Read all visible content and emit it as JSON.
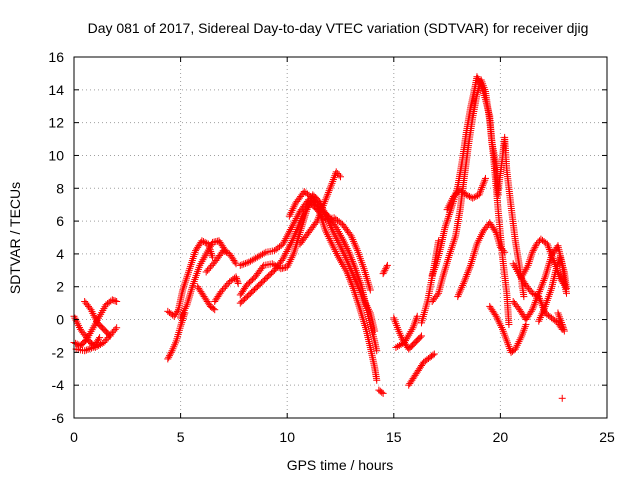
{
  "chart_data": {
    "type": "scatter",
    "title": "Day 081 of 2017, Sidereal Day-to-day VTEC variation (SDTVAR) for receiver djig",
    "xlabel": "GPS time / hours",
    "ylabel": "SDTVAR / TECUs",
    "xlim": [
      0,
      25
    ],
    "ylim": [
      -6,
      16
    ],
    "xticks": [
      "0",
      "5",
      "10",
      "15",
      "20",
      "25"
    ],
    "yticks": [
      "-6",
      "-4",
      "-2",
      "0",
      "2",
      "4",
      "6",
      "8",
      "10",
      "12",
      "14",
      "16"
    ],
    "grid": true,
    "marker": "+",
    "color": "#ff0000",
    "tracks": [
      [
        [
          0.0,
          0.2
        ],
        [
          0.3,
          -0.6
        ],
        [
          0.7,
          -1.3
        ],
        [
          1.0,
          -1.7
        ],
        [
          1.4,
          -1.4
        ],
        [
          1.8,
          -0.8
        ],
        [
          2.0,
          -0.5
        ]
      ],
      [
        [
          0.0,
          -1.4
        ],
        [
          0.3,
          -1.6
        ],
        [
          0.6,
          -1.2
        ],
        [
          0.9,
          -0.5
        ],
        [
          1.2,
          0.2
        ],
        [
          1.5,
          0.9
        ],
        [
          1.8,
          1.2
        ],
        [
          2.0,
          1.1
        ]
      ],
      [
        [
          0.1,
          -1.8
        ],
        [
          0.5,
          -1.9
        ],
        [
          0.9,
          -1.7
        ],
        [
          1.2,
          -1.1
        ]
      ],
      [
        [
          0.5,
          1.1
        ],
        [
          0.8,
          0.6
        ],
        [
          1.1,
          -0.2
        ],
        [
          1.4,
          -0.6
        ],
        [
          1.7,
          -1.0
        ]
      ],
      [
        [
          4.4,
          -2.4
        ],
        [
          4.6,
          -1.9
        ],
        [
          4.8,
          -1.3
        ],
        [
          5.0,
          -0.4
        ],
        [
          5.2,
          0.4
        ]
      ],
      [
        [
          4.4,
          0.5
        ],
        [
          4.7,
          0.2
        ],
        [
          4.9,
          0.6
        ],
        [
          5.1,
          1.8
        ],
        [
          5.4,
          3.0
        ],
        [
          5.7,
          4.2
        ],
        [
          6.0,
          4.8
        ],
        [
          6.3,
          4.6
        ],
        [
          6.5,
          3.8
        ]
      ],
      [
        [
          5.0,
          0.1
        ],
        [
          5.3,
          0.9
        ],
        [
          5.6,
          2.2
        ],
        [
          5.9,
          3.3
        ],
        [
          6.2,
          4.0
        ],
        [
          6.5,
          4.7
        ],
        [
          6.8,
          4.8
        ],
        [
          7.1,
          4.2
        ]
      ],
      [
        [
          5.8,
          2.0
        ],
        [
          6.1,
          1.4
        ],
        [
          6.4,
          0.8
        ],
        [
          6.6,
          0.6
        ]
      ],
      [
        [
          6.2,
          2.9
        ],
        [
          6.6,
          3.5
        ],
        [
          7.0,
          4.2
        ],
        [
          7.3,
          4.0
        ],
        [
          7.6,
          3.4
        ]
      ],
      [
        [
          6.6,
          1.1
        ],
        [
          6.9,
          1.7
        ],
        [
          7.3,
          2.3
        ],
        [
          7.6,
          2.6
        ],
        [
          7.7,
          2.2
        ]
      ],
      [
        [
          7.8,
          3.3
        ],
        [
          8.2,
          3.5
        ],
        [
          8.6,
          3.8
        ],
        [
          9.0,
          4.1
        ],
        [
          9.4,
          4.2
        ],
        [
          9.8,
          4.6
        ],
        [
          10.2,
          5.6
        ],
        [
          10.6,
          6.6
        ],
        [
          11.0,
          7.3
        ],
        [
          11.4,
          7.1
        ],
        [
          11.7,
          6.6
        ],
        [
          12.0,
          6.2
        ],
        [
          12.3,
          5.6
        ],
        [
          12.6,
          4.9
        ],
        [
          12.9,
          4.1
        ],
        [
          13.2,
          3.1
        ],
        [
          13.5,
          2.0
        ],
        [
          13.7,
          0.8
        ],
        [
          13.9,
          -0.3
        ],
        [
          14.1,
          -1.3
        ],
        [
          14.2,
          -1.9
        ]
      ],
      [
        [
          7.8,
          1.5
        ],
        [
          8.1,
          2.1
        ],
        [
          8.5,
          2.6
        ],
        [
          8.9,
          3.3
        ],
        [
          9.3,
          3.4
        ],
        [
          9.7,
          3.1
        ],
        [
          10.0,
          3.2
        ],
        [
          10.3,
          4.0
        ],
        [
          10.6,
          5.3
        ],
        [
          10.9,
          6.6
        ],
        [
          11.2,
          7.6
        ],
        [
          11.5,
          7.2
        ],
        [
          11.8,
          6.4
        ],
        [
          12.1,
          5.5
        ],
        [
          12.4,
          4.7
        ],
        [
          12.7,
          3.9
        ],
        [
          13.0,
          3.0
        ],
        [
          13.3,
          2.1
        ],
        [
          13.6,
          1.2
        ],
        [
          13.9,
          0.4
        ],
        [
          14.1,
          -0.7
        ]
      ],
      [
        [
          7.8,
          1.0
        ],
        [
          8.2,
          1.5
        ],
        [
          8.6,
          2.0
        ],
        [
          9.0,
          2.5
        ],
        [
          9.4,
          3.0
        ],
        [
          9.8,
          3.7
        ],
        [
          10.2,
          4.7
        ],
        [
          10.5,
          5.6
        ],
        [
          10.8,
          6.6
        ],
        [
          11.1,
          7.1
        ],
        [
          11.4,
          6.7
        ],
        [
          11.8,
          6.1
        ],
        [
          12.2,
          6.2
        ],
        [
          12.6,
          5.8
        ],
        [
          13.0,
          5.1
        ],
        [
          13.3,
          4.2
        ],
        [
          13.6,
          3.1
        ],
        [
          13.9,
          1.8
        ]
      ],
      [
        [
          10.1,
          6.3
        ],
        [
          10.4,
          7.1
        ],
        [
          10.8,
          7.8
        ],
        [
          11.1,
          7.5
        ],
        [
          11.4,
          7.0
        ],
        [
          11.8,
          5.4
        ],
        [
          12.1,
          4.6
        ],
        [
          12.4,
          3.8
        ],
        [
          12.8,
          2.9
        ],
        [
          13.1,
          1.9
        ],
        [
          13.4,
          0.7
        ],
        [
          13.7,
          -0.6
        ],
        [
          13.9,
          -1.7
        ],
        [
          14.1,
          -2.9
        ],
        [
          14.2,
          -3.7
        ]
      ],
      [
        [
          10.6,
          4.6
        ],
        [
          11.0,
          5.3
        ],
        [
          11.4,
          6.0
        ],
        [
          11.8,
          7.3
        ],
        [
          12.1,
          8.3
        ],
        [
          12.3,
          9.0
        ],
        [
          12.5,
          8.7
        ]
      ],
      [
        [
          14.3,
          -4.3
        ],
        [
          14.5,
          -4.5
        ]
      ],
      [
        [
          14.5,
          2.8
        ],
        [
          14.7,
          3.3
        ]
      ],
      [
        [
          15.0,
          0.1
        ],
        [
          15.2,
          -0.6
        ],
        [
          15.4,
          -1.2
        ],
        [
          15.7,
          -1.8
        ],
        [
          16.0,
          -1.4
        ],
        [
          16.3,
          -1.0
        ]
      ],
      [
        [
          15.1,
          -1.7
        ],
        [
          15.5,
          -1.4
        ],
        [
          15.9,
          -0.5
        ],
        [
          16.1,
          0.2
        ]
      ],
      [
        [
          15.7,
          -4.0
        ],
        [
          15.9,
          -3.6
        ],
        [
          16.1,
          -3.2
        ],
        [
          16.4,
          -2.6
        ],
        [
          16.7,
          -2.3
        ],
        [
          16.9,
          -2.1
        ]
      ],
      [
        [
          16.8,
          2.7
        ],
        [
          17.0,
          3.4
        ],
        [
          17.2,
          4.4
        ],
        [
          17.4,
          5.6
        ],
        [
          17.6,
          6.4
        ],
        [
          17.8,
          7.2
        ],
        [
          18.0,
          8.1
        ],
        [
          18.2,
          9.6
        ],
        [
          18.4,
          11.4
        ],
        [
          18.6,
          12.9
        ],
        [
          18.8,
          14.1
        ],
        [
          18.9,
          14.8
        ],
        [
          19.1,
          14.3
        ],
        [
          19.3,
          13.4
        ],
        [
          19.5,
          12.4
        ],
        [
          19.6,
          10.8
        ],
        [
          19.8,
          9.4
        ],
        [
          19.9,
          7.6
        ]
      ],
      [
        [
          16.8,
          1.1
        ],
        [
          17.1,
          1.6
        ],
        [
          17.3,
          2.6
        ],
        [
          17.6,
          3.9
        ],
        [
          17.9,
          5.1
        ],
        [
          18.1,
          6.6
        ],
        [
          18.3,
          8.6
        ],
        [
          18.5,
          10.6
        ],
        [
          18.7,
          12.3
        ],
        [
          18.9,
          13.7
        ],
        [
          19.1,
          14.6
        ],
        [
          19.3,
          13.9
        ],
        [
          19.5,
          12.1
        ],
        [
          19.7,
          9.6
        ],
        [
          19.9,
          6.6
        ],
        [
          20.1,
          3.8
        ],
        [
          20.3,
          1.6
        ],
        [
          20.4,
          -0.3
        ]
      ],
      [
        [
          17.5,
          6.7
        ],
        [
          17.8,
          7.5
        ],
        [
          18.1,
          7.9
        ],
        [
          18.4,
          7.6
        ],
        [
          18.7,
          7.4
        ],
        [
          19.0,
          7.6
        ],
        [
          19.3,
          8.6
        ]
      ],
      [
        [
          16.3,
          -0.2
        ],
        [
          16.6,
          1.2
        ],
        [
          16.9,
          3.3
        ],
        [
          17.1,
          4.8
        ]
      ],
      [
        [
          18.0,
          1.4
        ],
        [
          18.3,
          2.3
        ],
        [
          18.6,
          3.3
        ],
        [
          18.9,
          4.6
        ],
        [
          19.2,
          5.4
        ],
        [
          19.5,
          5.9
        ],
        [
          19.8,
          5.3
        ],
        [
          20.0,
          4.4
        ],
        [
          20.2,
          4.1
        ]
      ],
      [
        [
          19.5,
          0.8
        ],
        [
          19.8,
          0.2
        ],
        [
          20.1,
          -0.6
        ],
        [
          20.3,
          -1.3
        ],
        [
          20.5,
          -2.0
        ],
        [
          20.7,
          -1.8
        ],
        [
          21.0,
          -1.0
        ],
        [
          21.2,
          -0.3
        ]
      ],
      [
        [
          19.9,
          7.9
        ],
        [
          20.1,
          9.9
        ],
        [
          20.2,
          11.1
        ],
        [
          20.3,
          9.1
        ],
        [
          20.5,
          6.9
        ],
        [
          20.7,
          4.8
        ],
        [
          20.9,
          3.2
        ],
        [
          21.1,
          1.4
        ]
      ],
      [
        [
          20.6,
          3.4
        ],
        [
          20.9,
          2.7
        ],
        [
          21.2,
          2.1
        ],
        [
          21.5,
          1.6
        ],
        [
          21.8,
          1.4
        ],
        [
          22.1,
          0.4
        ],
        [
          22.4,
          0.1
        ],
        [
          22.7,
          -0.2
        ],
        [
          22.9,
          -0.6
        ]
      ],
      [
        [
          20.6,
          1.1
        ],
        [
          20.9,
          0.6
        ],
        [
          21.2,
          0.0
        ],
        [
          21.5,
          0.6
        ],
        [
          21.8,
          1.6
        ],
        [
          22.1,
          2.6
        ],
        [
          22.4,
          3.9
        ],
        [
          22.7,
          4.5
        ],
        [
          22.9,
          3.4
        ],
        [
          23.0,
          2.2
        ],
        [
          23.1,
          1.6
        ]
      ],
      [
        [
          21.0,
          2.6
        ],
        [
          21.3,
          3.3
        ],
        [
          21.5,
          4.1
        ],
        [
          21.7,
          4.6
        ],
        [
          21.9,
          4.9
        ],
        [
          22.2,
          4.6
        ],
        [
          22.5,
          3.6
        ],
        [
          22.8,
          2.5
        ],
        [
          23.0,
          2.1
        ]
      ],
      [
        [
          21.8,
          -0.1
        ],
        [
          22.1,
          0.8
        ],
        [
          22.4,
          1.9
        ],
        [
          22.6,
          3.0
        ],
        [
          22.8,
          3.8
        ],
        [
          23.0,
          2.9
        ],
        [
          23.1,
          1.9
        ]
      ],
      [
        [
          22.7,
          0.4
        ],
        [
          22.9,
          -0.3
        ],
        [
          23.0,
          -0.7
        ]
      ],
      [
        [
          22.9,
          -4.8
        ]
      ]
    ]
  }
}
